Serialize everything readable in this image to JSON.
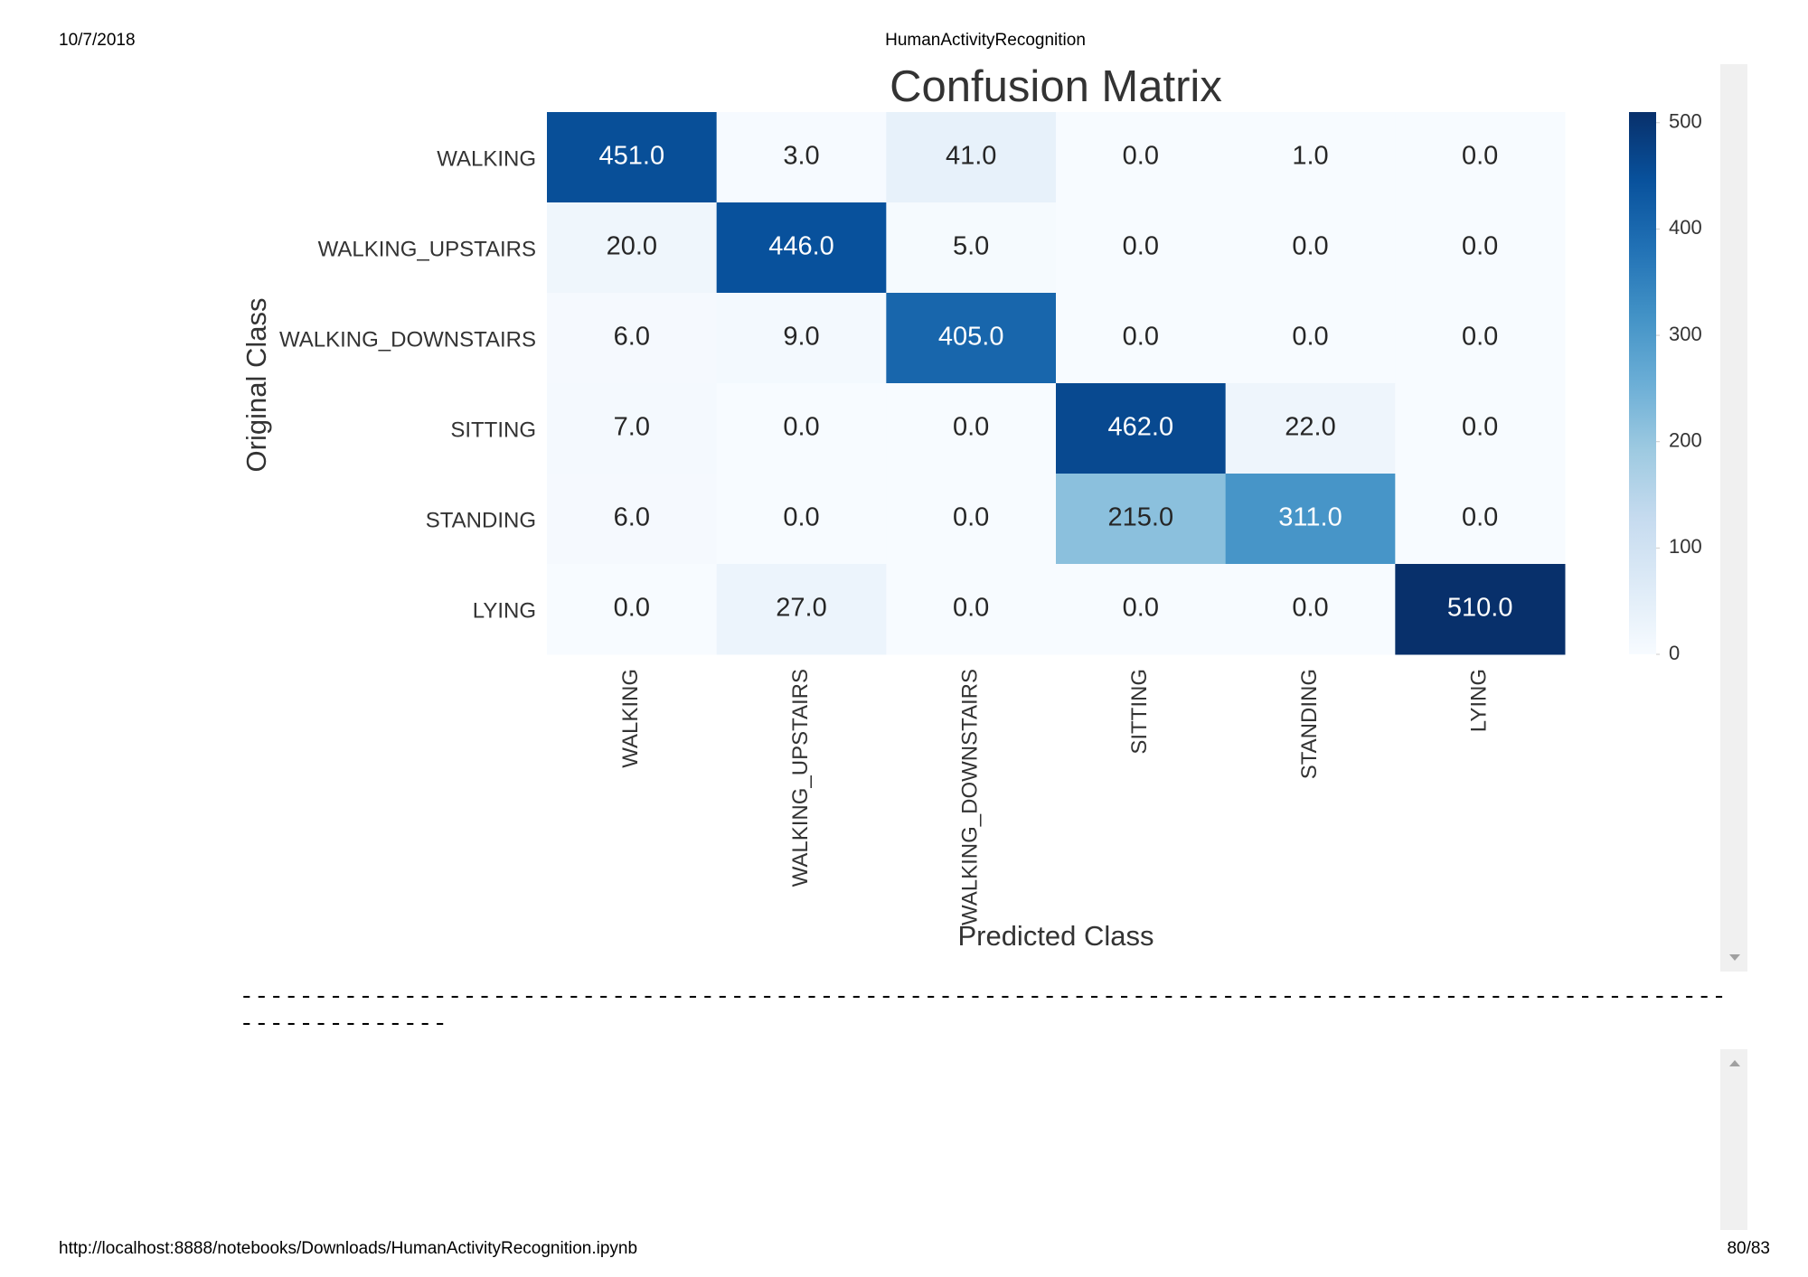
{
  "header": {
    "date": "10/7/2018",
    "title": "HumanActivityRecognition"
  },
  "chart_data": {
    "type": "heatmap",
    "title": "Confusion Matrix",
    "x_label": "Predicted Class",
    "y_label": "Original Class",
    "x_categories": [
      "WALKING",
      "WALKING_UPSTAIRS",
      "WALKING_DOWNSTAIRS",
      "SITTING",
      "STANDING",
      "LYING"
    ],
    "y_categories": [
      "WALKING",
      "WALKING_UPSTAIRS",
      "WALKING_DOWNSTAIRS",
      "SITTING",
      "STANDING",
      "LYING"
    ],
    "values": [
      [
        451,
        3,
        41,
        0,
        1,
        0
      ],
      [
        20,
        446,
        5,
        0,
        0,
        0
      ],
      [
        6,
        9,
        405,
        0,
        0,
        0
      ],
      [
        7,
        0,
        0,
        462,
        22,
        0
      ],
      [
        6,
        0,
        0,
        215,
        311,
        0
      ],
      [
        0,
        27,
        0,
        0,
        0,
        510
      ]
    ],
    "value_labels": [
      [
        "451.0",
        "3.0",
        "41.0",
        "0.0",
        "1.0",
        "0.0"
      ],
      [
        "20.0",
        "446.0",
        "5.0",
        "0.0",
        "0.0",
        "0.0"
      ],
      [
        "6.0",
        "9.0",
        "405.0",
        "0.0",
        "0.0",
        "0.0"
      ],
      [
        "7.0",
        "0.0",
        "0.0",
        "462.0",
        "22.0",
        "0.0"
      ],
      [
        "6.0",
        "0.0",
        "0.0",
        "215.0",
        "311.0",
        "0.0"
      ],
      [
        "0.0",
        "27.0",
        "0.0",
        "0.0",
        "0.0",
        "510.0"
      ]
    ],
    "colormap": "Blues",
    "clim": [
      0,
      510
    ],
    "cticks": [
      0,
      100,
      200,
      300,
      400,
      500
    ]
  },
  "output_text": "------------------------------------------------------------------------------------------------------------------",
  "footer": {
    "url": "http://localhost:8888/notebooks/Downloads/HumanActivityRecognition.ipynb",
    "page": "80/83"
  }
}
